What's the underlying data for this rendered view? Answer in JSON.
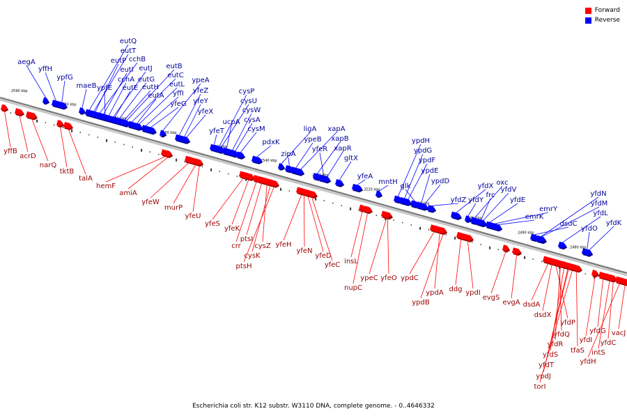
{
  "legend": {
    "forward_label": "Forward",
    "reverse_label": "Reverse",
    "forward_color": "#ff0000",
    "reverse_color": "#0000ff"
  },
  "caption": "Escherichia coli str. K12 substr. W3110 DNA, complete genome. - 0..4646332",
  "scale_ticks": [
    "2590 kbp",
    "2580 kbp",
    "2570 kbp",
    "2560 kbp",
    "2550 kbp",
    "2540 kbp",
    "2530 kbp",
    "2520 kbp",
    "2510 kbp",
    "2500 kbp",
    "2490 kbp",
    "2480 kbp"
  ],
  "reverse_genes": [
    "aegA",
    "yffH",
    "ypfG",
    "maeB",
    "eutQ",
    "eutT",
    "eutP",
    "cchB",
    "eutI",
    "ypfE",
    "cchA",
    "eutJ",
    "eutE",
    "eutG",
    "eutH",
    "eutB",
    "eutC",
    "eutA",
    "eutL",
    "yffI",
    "yfeG",
    "ypeA",
    "yfeZ",
    "yfeY",
    "yfeX",
    "yfeT",
    "cysP",
    "cysU",
    "ucpA",
    "cysW",
    "cysA",
    "cysM",
    "pdxK",
    "ligA",
    "zipA",
    "ypeB",
    "xapA",
    "xapB",
    "yfeR",
    "xapR",
    "gltX",
    "yfeA",
    "mntH",
    "ypdH",
    "ypdG",
    "ypdF",
    "glk",
    "ypdE",
    "ypdD",
    "yfdZ",
    "yfdX",
    "yfdY",
    "oxc",
    "frc",
    "yfdV",
    "yfdE",
    "emrY",
    "emrK",
    "dsdC",
    "yfdN",
    "yfdM",
    "yfdL",
    "yfdO",
    "yfdK"
  ],
  "forward_genes": [
    "yffB",
    "acrD",
    "narQ",
    "tktB",
    "talA",
    "hemF",
    "amiA",
    "yfeW",
    "murP",
    "yfeU",
    "yfeS",
    "yfeK",
    "crr",
    "ptsI",
    "cysZ",
    "cysK",
    "ptsH",
    "yfeH",
    "yfeN",
    "yfeD",
    "yfeC",
    "insL",
    "nupC",
    "ypeC",
    "yfeO",
    "ypdC",
    "ypdA",
    "ypdB",
    "ddg",
    "ypdI",
    "evgS",
    "evgA",
    "dsdA",
    "dsdX",
    "yfdP",
    "yfdQ",
    "yfdR",
    "yfdS",
    "yfdT",
    "ypdJ",
    "torI",
    "tfaS",
    "yfdI",
    "yfdG",
    "intS",
    "yfdC",
    "yfdH",
    "vacJ"
  ]
}
